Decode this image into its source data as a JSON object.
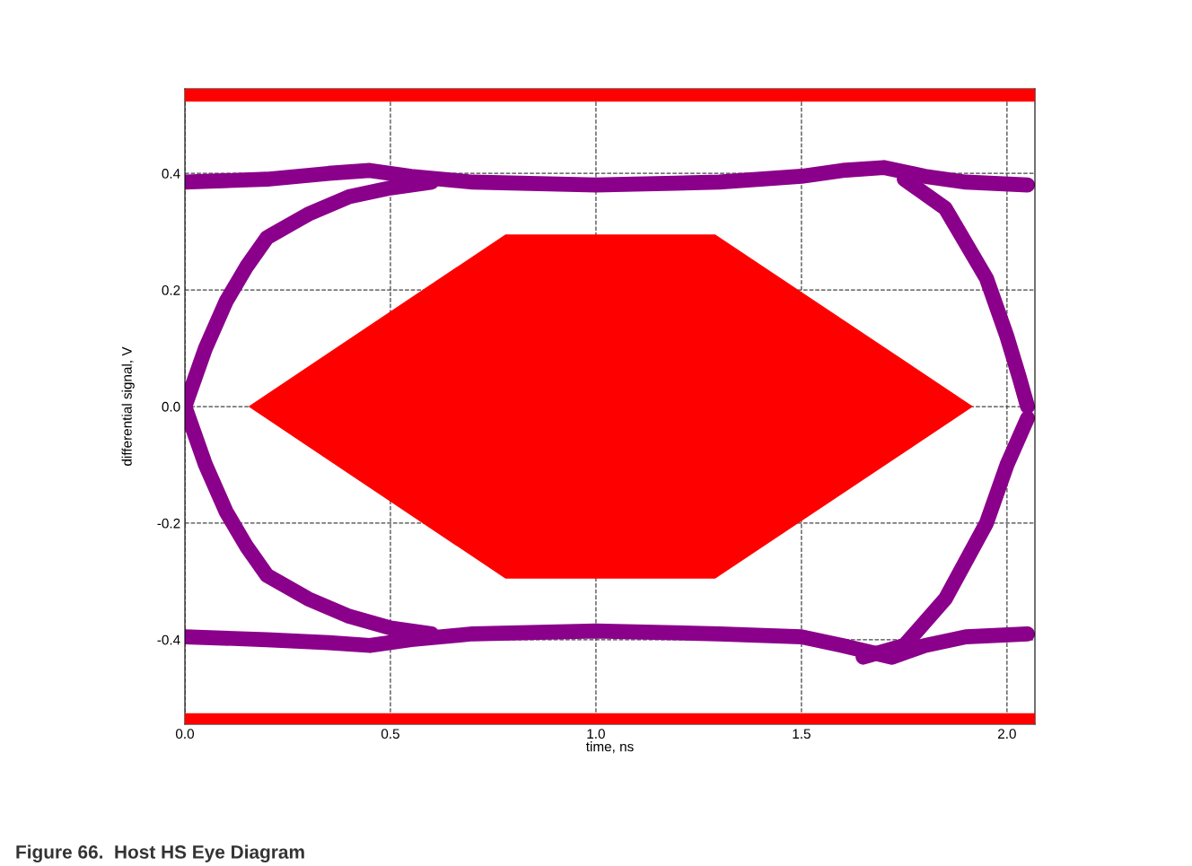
{
  "chart_data": {
    "type": "line",
    "xlabel": "time, ns",
    "ylabel": "differential signal, V",
    "xlim": [
      0,
      2.068
    ],
    "ylim": [
      -0.545,
      0.545
    ],
    "xticks": [
      {
        "value": 0,
        "label": "0.0"
      },
      0.5,
      {
        "value": 1,
        "label": "1.0"
      },
      1.5,
      {
        "value": 2,
        "label": "2.0"
      }
    ],
    "yticks": [
      {
        "value": -0.4,
        "label": "-0.4"
      },
      {
        "value": -0.2,
        "label": "-0.2"
      },
      {
        "value": 0,
        "label": "0.0"
      },
      0.2,
      0.4
    ],
    "grid": true,
    "series": [
      {
        "type": "area",
        "color": "#ff0000",
        "x": [
          0.157,
          0.78,
          1.29,
          1.915,
          1.29,
          0.78,
          0.157
        ],
        "values": [
          0,
          0.294,
          0.294,
          0,
          -0.294,
          -0.294,
          0
        ]
      },
      {
        "color": "#8b008b",
        "x": [
          0,
          0.2,
          0.35,
          0.45,
          0.55,
          0.7,
          1.0,
          1.3,
          1.5,
          1.6,
          1.7,
          1.8,
          1.9,
          2.05
        ],
        "values": [
          0.385,
          0.39,
          0.4,
          0.405,
          0.395,
          0.385,
          0.38,
          0.385,
          0.395,
          0.405,
          0.41,
          0.395,
          0.385,
          0.38
        ]
      },
      {
        "color": "#8b008b",
        "x": [
          0,
          0.2,
          0.35,
          0.45,
          0.55,
          0.7,
          1.0,
          1.3,
          1.5,
          1.6,
          1.72,
          1.8,
          1.9,
          2.05
        ],
        "values": [
          -0.395,
          -0.4,
          -0.405,
          -0.41,
          -0.4,
          -0.39,
          -0.385,
          -0.39,
          -0.395,
          -0.41,
          -0.43,
          -0.41,
          -0.395,
          -0.39
        ]
      },
      {
        "color": "#8b008b",
        "x": [
          0,
          0.05,
          0.1,
          0.15,
          0.2,
          0.3,
          0.4,
          0.5,
          0.6
        ],
        "values": [
          0,
          0.1,
          0.18,
          0.24,
          0.29,
          0.33,
          0.36,
          0.375,
          0.385
        ]
      },
      {
        "color": "#8b008b",
        "x": [
          0,
          0.05,
          0.1,
          0.15,
          0.2,
          0.3,
          0.4,
          0.5,
          0.6
        ],
        "values": [
          0,
          -0.1,
          -0.18,
          -0.24,
          -0.29,
          -0.33,
          -0.36,
          -0.38,
          -0.39
        ]
      },
      {
        "color": "#8b008b",
        "x": [
          1.75,
          1.85,
          1.95,
          2.0,
          2.03,
          2.05
        ],
        "values": [
          0.39,
          0.34,
          0.22,
          0.12,
          0.05,
          0.0
        ]
      },
      {
        "color": "#8b008b",
        "x": [
          1.65,
          1.75,
          1.85,
          1.95,
          2.0,
          2.05
        ],
        "values": [
          -0.43,
          -0.41,
          -0.33,
          -0.2,
          -0.1,
          -0.02
        ]
      }
    ],
    "bands": [
      {
        "axis": "y",
        "from": 0.523,
        "to": 0.545,
        "color": "#ff0000"
      },
      {
        "axis": "y",
        "from": -0.545,
        "to": -0.526,
        "color": "#ff0000"
      }
    ],
    "annotations": [
      "Figure 66.  Host HS Eye Diagram"
    ]
  }
}
